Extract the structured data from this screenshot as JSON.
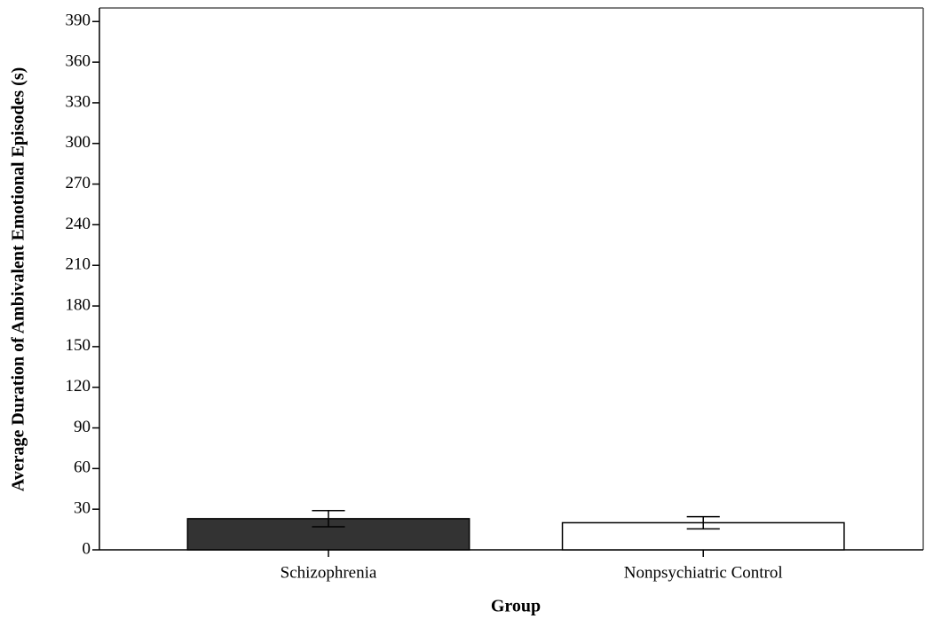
{
  "chart_data": {
    "type": "bar",
    "x_label": "Group",
    "y_label": "Average Duration of Ambivalent Emotional Episodes (s)",
    "categories": [
      "Schizophrenia",
      "Nonpsychiatric Control"
    ],
    "values": [
      23,
      20
    ],
    "errors": [
      6,
      4.5
    ],
    "colors": [
      "#333333",
      "#ffffff"
    ],
    "ylim": [
      0,
      400
    ],
    "yticks": [
      0,
      30,
      60,
      90,
      120,
      150,
      180,
      210,
      240,
      270,
      300,
      330,
      360,
      390
    ],
    "grid": false
  }
}
